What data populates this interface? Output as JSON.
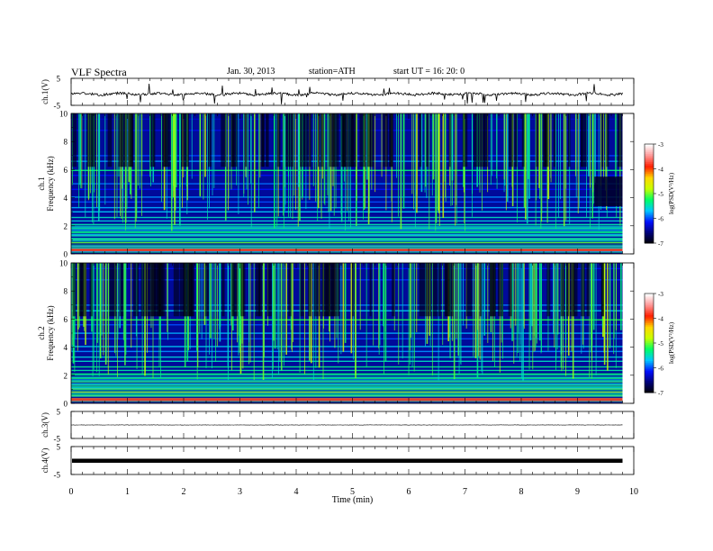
{
  "header": {
    "title": "VLF  Spectra",
    "date": "Jan. 30, 2013",
    "station": "station=ATH",
    "start": "start  UT =   16: 20: 0"
  },
  "chart_data": [
    {
      "type": "line",
      "panel": "ch1-waveform",
      "ylabel": "ch.1(V)",
      "ylim": [
        -5,
        5
      ],
      "y_ticks": [
        "5",
        "-5"
      ],
      "baseline": -0.8,
      "series_color": "#000000"
    },
    {
      "type": "heatmap",
      "panel": "ch1-spectrogram",
      "ylabel": "ch.1\nFrequency  (kHz)",
      "ylabel_lines": [
        "ch.1",
        "Frequency  (kHz)"
      ],
      "ylim": [
        0,
        10
      ],
      "y_ticks": [
        "0",
        "2",
        "4",
        "6",
        "8",
        "10"
      ],
      "colorbar": {
        "label": "log(PSD(V²/Hz)",
        "range": [
          -7,
          -3
        ],
        "ticks": [
          "-3",
          "-4",
          "-5",
          "-6",
          "-7"
        ]
      }
    },
    {
      "type": "heatmap",
      "panel": "ch2-spectrogram",
      "ylabel": "ch.2\nFrequency  (kHz)",
      "ylabel_lines": [
        "ch.2",
        "Frequency  (kHz)"
      ],
      "ylim": [
        0,
        10
      ],
      "y_ticks": [
        "0",
        "2",
        "4",
        "6",
        "8",
        "10"
      ],
      "colorbar": {
        "label": "log(PSD(V²/Hz)",
        "range": [
          -7,
          -3
        ],
        "ticks": [
          "-3",
          "-4",
          "-5",
          "-6",
          "-7"
        ]
      }
    },
    {
      "type": "line",
      "panel": "ch3-waveform",
      "ylabel": "ch.3(V)",
      "ylim": [
        -5,
        5
      ],
      "y_ticks": [
        "5",
        "-5"
      ],
      "baseline": 0,
      "series_color": "#000000"
    },
    {
      "type": "line",
      "panel": "ch4-waveform",
      "ylabel": "ch.4(V)",
      "ylim": [
        -5,
        5
      ],
      "y_ticks": [
        "5",
        "-5"
      ],
      "baseline": 0,
      "series_color": "#000000"
    }
  ],
  "x_axis": {
    "label": "Time  (min)",
    "range": [
      0,
      10
    ],
    "ticks": [
      "0",
      "1",
      "2",
      "3",
      "4",
      "5",
      "6",
      "7",
      "8",
      "9",
      "10"
    ],
    "data_end": 9.8
  },
  "colormap": [
    "#000000",
    "#000078",
    "#0010ff",
    "#00c8ff",
    "#00ff64",
    "#c8ff00",
    "#ffd700",
    "#ff1e00",
    "#ff9696",
    "#ffffff"
  ]
}
